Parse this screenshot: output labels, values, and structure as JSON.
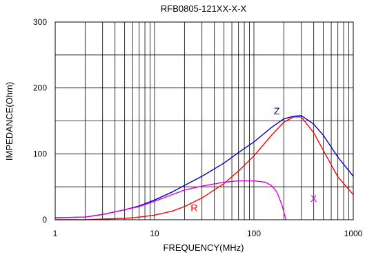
{
  "chart_data": {
    "type": "line",
    "title": "RFB0805-121XX-X-X",
    "xlabel": "FREQUENCY(MHz)",
    "ylabel": "IMPEDANCE(Ohm)",
    "x_scale": "log",
    "xlim": [
      1,
      1000
    ],
    "ylim": [
      0,
      300
    ],
    "x_ticks": [
      1,
      10,
      100,
      1000
    ],
    "x_tick_labels": [
      "1",
      "10",
      "100",
      "1000"
    ],
    "y_ticks": [
      0,
      100,
      200,
      300
    ],
    "y_tick_labels": [
      "0",
      "100",
      "200",
      "300"
    ],
    "grid": true,
    "series": [
      {
        "name": "Z",
        "color": "#0000cc",
        "label_at": [
          170,
          160
        ],
        "points": [
          [
            1,
            3
          ],
          [
            2,
            4
          ],
          [
            3,
            8
          ],
          [
            5,
            15
          ],
          [
            7,
            21
          ],
          [
            10,
            30
          ],
          [
            15,
            42
          ],
          [
            20,
            52
          ],
          [
            30,
            66
          ],
          [
            50,
            86
          ],
          [
            70,
            102
          ],
          [
            100,
            118
          ],
          [
            150,
            140
          ],
          [
            200,
            153
          ],
          [
            250,
            157
          ],
          [
            300,
            158
          ],
          [
            400,
            145
          ],
          [
            500,
            128
          ],
          [
            700,
            95
          ],
          [
            1000,
            66
          ]
        ]
      },
      {
        "name": "R",
        "color": "#ff0000",
        "label_at": [
          25,
          13
        ],
        "points": [
          [
            1,
            0
          ],
          [
            2,
            0
          ],
          [
            3,
            1
          ],
          [
            5,
            2
          ],
          [
            7,
            4
          ],
          [
            10,
            7
          ],
          [
            15,
            13
          ],
          [
            20,
            20
          ],
          [
            30,
            33
          ],
          [
            50,
            55
          ],
          [
            70,
            74
          ],
          [
            100,
            97
          ],
          [
            150,
            128
          ],
          [
            200,
            148
          ],
          [
            250,
            156
          ],
          [
            300,
            156
          ],
          [
            400,
            132
          ],
          [
            500,
            105
          ],
          [
            700,
            65
          ],
          [
            1000,
            38
          ]
        ]
      },
      {
        "name": "X",
        "color": "#e000e0",
        "label_at": [
          400,
          27
        ],
        "points": [
          [
            1,
            3
          ],
          [
            2,
            4
          ],
          [
            3,
            8
          ],
          [
            5,
            15
          ],
          [
            7,
            20
          ],
          [
            10,
            28
          ],
          [
            15,
            38
          ],
          [
            20,
            45
          ],
          [
            30,
            51
          ],
          [
            50,
            57
          ],
          [
            70,
            59
          ],
          [
            100,
            59
          ],
          [
            130,
            57
          ],
          [
            150,
            52
          ],
          [
            170,
            42
          ],
          [
            190,
            24
          ],
          [
            200,
            12
          ],
          [
            210,
            0
          ]
        ]
      }
    ]
  }
}
